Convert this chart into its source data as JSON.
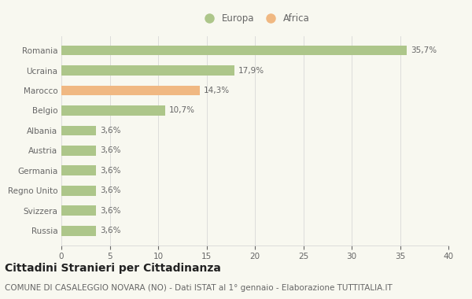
{
  "categories": [
    "Romania",
    "Ucraina",
    "Marocco",
    "Belgio",
    "Albania",
    "Austria",
    "Germania",
    "Regno Unito",
    "Svizzera",
    "Russia"
  ],
  "values": [
    35.7,
    17.9,
    14.3,
    10.7,
    3.6,
    3.6,
    3.6,
    3.6,
    3.6,
    3.6
  ],
  "labels": [
    "35,7%",
    "17,9%",
    "14,3%",
    "10,7%",
    "3,6%",
    "3,6%",
    "3,6%",
    "3,6%",
    "3,6%",
    "3,6%"
  ],
  "colors": [
    "#adc68a",
    "#adc68a",
    "#f0b882",
    "#adc68a",
    "#adc68a",
    "#adc68a",
    "#adc68a",
    "#adc68a",
    "#adc68a",
    "#adc68a"
  ],
  "legend_europa_color": "#adc68a",
  "legend_africa_color": "#f0b882",
  "background_color": "#f8f8f0",
  "title": "Cittadini Stranieri per Cittadinanza",
  "subtitle": "COMUNE DI CASALEGGIO NOVARA (NO) - Dati ISTAT al 1° gennaio - Elaborazione TUTTITALIA.IT",
  "xlim": [
    0,
    40
  ],
  "xticks": [
    0,
    5,
    10,
    15,
    20,
    25,
    30,
    35,
    40
  ],
  "grid_color": "#d8d8d8",
  "text_color": "#666666",
  "title_color": "#222222",
  "subtitle_color": "#666666",
  "title_fontsize": 10,
  "subtitle_fontsize": 7.5,
  "label_fontsize": 7.5,
  "tick_fontsize": 7.5,
  "legend_fontsize": 8.5
}
